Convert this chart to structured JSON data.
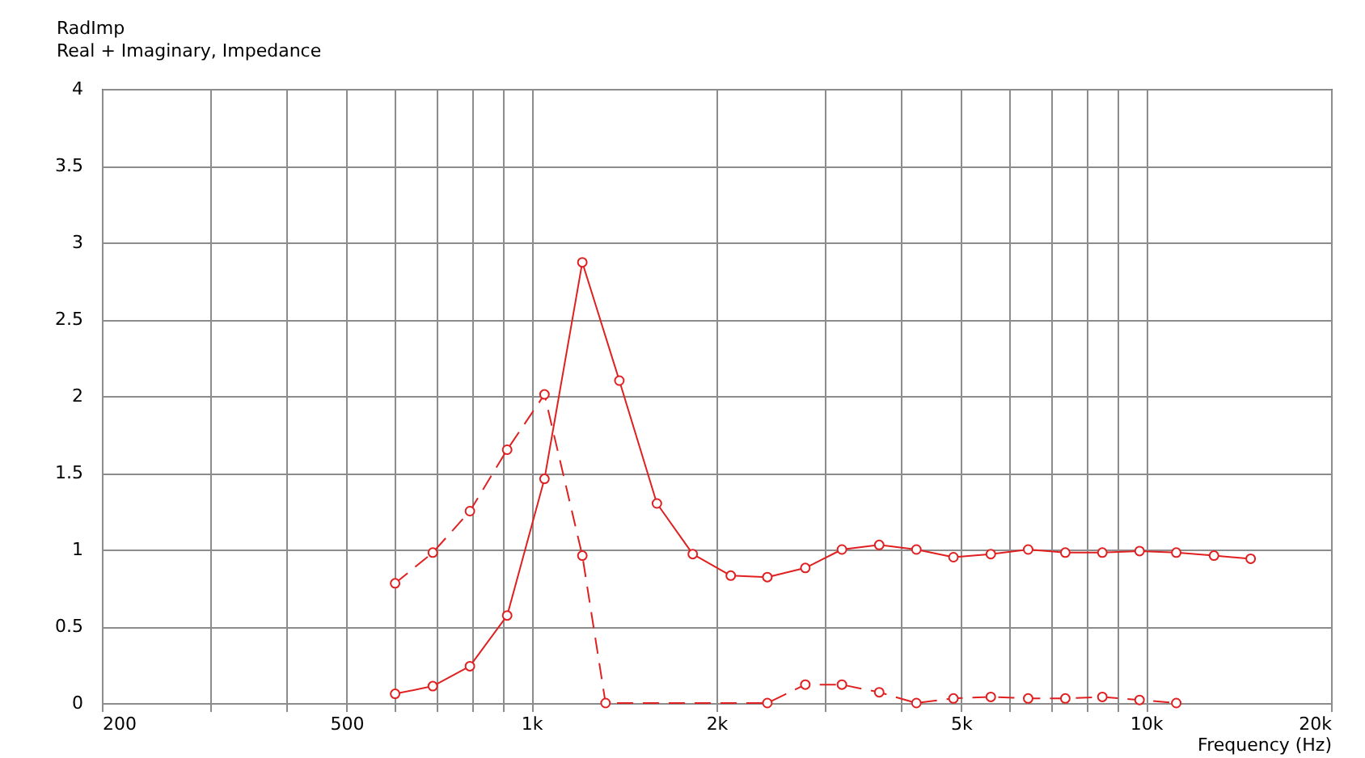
{
  "chart_data": {
    "type": "line",
    "title": "RadImp",
    "subtitle": "Real + Imaginary, Impedance",
    "xlabel": "Frequency  (Hz)",
    "log": "x",
    "grid": true,
    "marker": "circle",
    "xlim": [
      200,
      20000
    ],
    "ylim": [
      0,
      4
    ],
    "xticks": [
      200,
      {
        "value": 300,
        "label": null
      },
      {
        "value": 400,
        "label": null
      },
      500,
      {
        "value": 600,
        "label": null
      },
      {
        "value": 700,
        "label": null
      },
      {
        "value": 800,
        "label": null
      },
      {
        "value": 900,
        "label": null
      },
      {
        "value": 1000,
        "label": "1k"
      },
      {
        "value": 2000,
        "label": "2k"
      },
      {
        "value": 3000,
        "label": null
      },
      {
        "value": 4000,
        "label": null
      },
      {
        "value": 5000,
        "label": "5k"
      },
      {
        "value": 6000,
        "label": null
      },
      {
        "value": 7000,
        "label": null
      },
      {
        "value": 8000,
        "label": null
      },
      {
        "value": 9000,
        "label": null
      },
      {
        "value": 10000,
        "label": "10k"
      },
      {
        "value": 20000,
        "label": "20k"
      }
    ],
    "yticks": [
      0,
      0.5,
      1,
      1.5,
      2,
      2.5,
      3,
      3.5,
      4
    ],
    "series": [
      {
        "color": "#e02020",
        "line_style": "solid",
        "x": [
          600,
          691,
          794,
          913,
          1050,
          1210,
          1390,
          1600,
          1830,
          2110,
          2420,
          2790,
          3200,
          3680,
          4230,
          4860,
          5590,
          6430,
          7390,
          8490,
          9760,
          11200,
          12900,
          14800
        ],
        "values": [
          0.06,
          0.11,
          0.24,
          0.57,
          1.46,
          2.87,
          2.1,
          1.3,
          0.97,
          0.83,
          0.82,
          0.88,
          1.0,
          1.03,
          1.0,
          0.95,
          0.97,
          1.0,
          0.98,
          0.98,
          0.99,
          0.98,
          0.96,
          0.94
        ]
      },
      {
        "color": "#e02020",
        "line_style": "dashed",
        "x": [
          600,
          691,
          794,
          913,
          1050,
          1210,
          1320,
          2420,
          2790,
          3200,
          3680,
          4230,
          4860,
          5590,
          6430,
          7390,
          8490,
          9760,
          11200
        ],
        "values": [
          0.78,
          0.98,
          1.25,
          1.65,
          2.01,
          0.96,
          0.0,
          0.0,
          0.12,
          0.12,
          0.07,
          0.0,
          0.03,
          0.04,
          0.03,
          0.03,
          0.04,
          0.02,
          0.0
        ]
      }
    ]
  }
}
